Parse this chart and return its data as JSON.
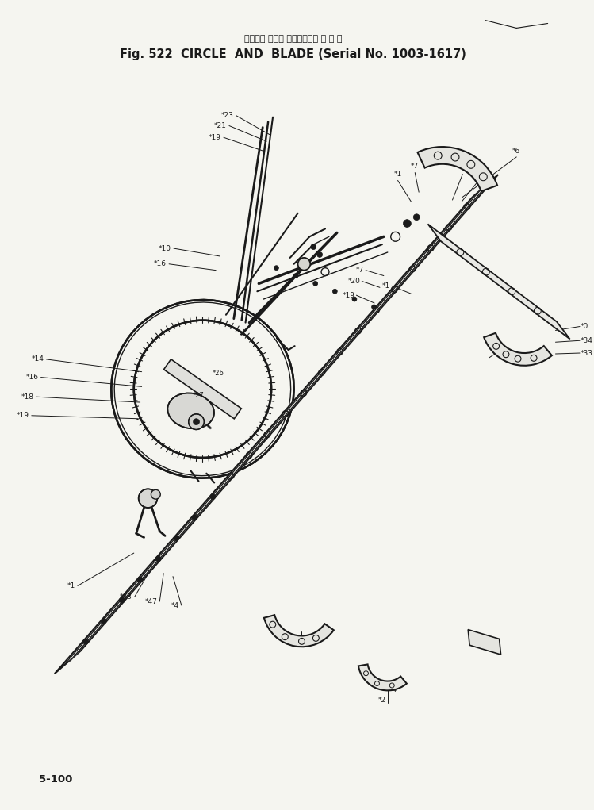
{
  "title_japanese": "サークル および ブレード（適 用 号 機",
  "title_english": "Fig. 522  CIRCLE  AND  BLADE (Serial No. 1003-1617)",
  "page_number": "5-100",
  "bg_color": "#f5f5f0",
  "line_color": "#1a1a1a"
}
